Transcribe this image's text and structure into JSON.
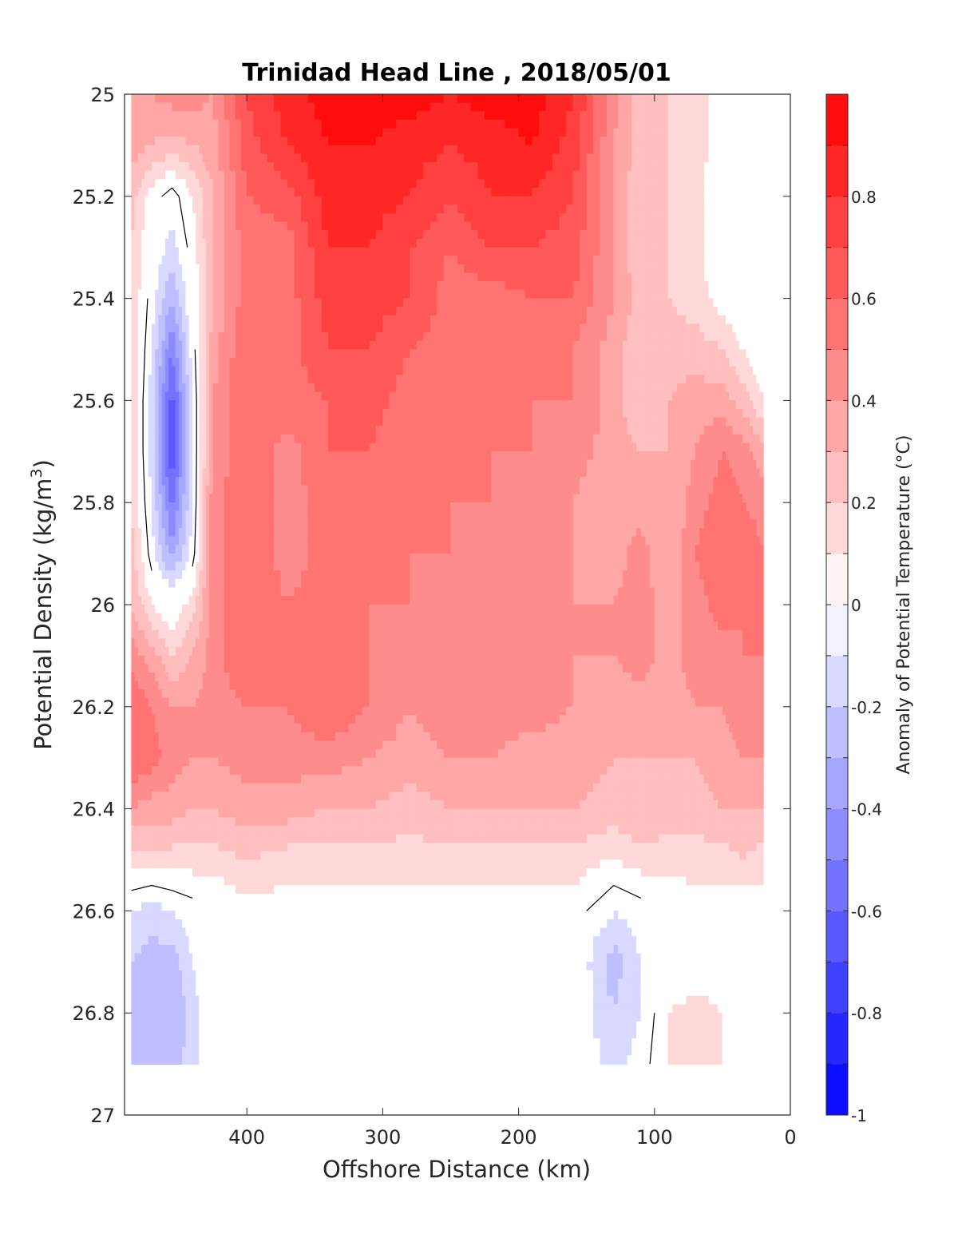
{
  "chart_data": {
    "type": "heatmap",
    "subtype": "filled-contour section",
    "title": "Trinidad Head Line , 2018/05/01",
    "xlabel": "Offshore Distance (km)",
    "ylabel": "Potential Density (kg/m",
    "ylabel_sup": "3",
    "ylabel_close": ")",
    "xlim": [
      490,
      0
    ],
    "x_reversed": true,
    "ylim": [
      25,
      27
    ],
    "y_reversed": true,
    "x_ticks": [
      "400",
      "300",
      "200",
      "100",
      "0"
    ],
    "y_ticks": [
      "25",
      "25.2",
      "25.4",
      "25.6",
      "25.8",
      "26",
      "26.2",
      "26.4",
      "26.6",
      "26.8",
      "27"
    ],
    "grid": false,
    "colorbar": {
      "label": "Anomaly of Potential Temperature (°C)",
      "range": [
        -1,
        1
      ],
      "tick_labels": [
        "0.8",
        "0.6",
        "0.4",
        "0.2",
        "0",
        "-0.2",
        "-0.4",
        "-0.6",
        "-0.8",
        "-1"
      ],
      "level_step": 0.1,
      "colormap": "blue-white-red",
      "low_color": "#0000ff",
      "mid_color": "#ffffff",
      "high_color": "#ff0000"
    },
    "contour_line": {
      "level": 0,
      "color": "#000000"
    },
    "data_extent_x": [
      490,
      20
    ],
    "data_extent_y": [
      25,
      26.9
    ],
    "x": [
      485,
      470,
      455,
      440,
      425,
      400,
      370,
      340,
      310,
      280,
      250,
      220,
      190,
      160,
      130,
      110,
      90,
      70,
      50,
      35,
      20
    ],
    "y": [
      25.0,
      25.1,
      25.2,
      25.3,
      25.4,
      25.5,
      25.6,
      25.7,
      25.8,
      25.9,
      26.0,
      26.1,
      26.2,
      26.3,
      26.4,
      26.5,
      26.6,
      26.7,
      26.8,
      26.9
    ],
    "z": [
      [
        0.35,
        0.4,
        0.45,
        0.45,
        0.4,
        0.7,
        0.85,
        0.95,
        0.95,
        0.95,
        0.9,
        0.95,
        0.95,
        0.8,
        0.45,
        0.25,
        0.2,
        0.15,
        0.05,
        0.05,
        0.05
      ],
      [
        0.35,
        0.3,
        0.25,
        0.3,
        0.35,
        0.65,
        0.8,
        0.9,
        0.9,
        0.85,
        0.8,
        0.85,
        0.9,
        0.75,
        0.4,
        0.25,
        0.2,
        0.15,
        0.05,
        0.05,
        0.05
      ],
      [
        0.25,
        0.05,
        -0.05,
        0.1,
        0.3,
        0.6,
        0.65,
        0.85,
        0.85,
        0.8,
        0.7,
        0.8,
        0.8,
        0.7,
        0.4,
        0.2,
        0.2,
        0.15,
        0.0,
        0.0,
        0.0
      ],
      [
        0.2,
        0.0,
        -0.15,
        0.05,
        0.3,
        0.55,
        0.55,
        0.8,
        0.8,
        0.7,
        0.6,
        0.7,
        0.7,
        0.65,
        0.4,
        0.2,
        0.2,
        0.15,
        0.0,
        -0.05,
        0.0
      ],
      [
        0.2,
        -0.05,
        -0.3,
        0.0,
        0.3,
        0.55,
        0.55,
        0.75,
        0.75,
        0.7,
        0.55,
        0.55,
        0.6,
        0.6,
        0.4,
        0.25,
        0.2,
        0.15,
        0.05,
        0.0,
        -0.05
      ],
      [
        0.2,
        -0.1,
        -0.5,
        -0.05,
        0.35,
        0.6,
        0.55,
        0.7,
        0.7,
        0.6,
        0.55,
        0.5,
        0.55,
        0.5,
        0.35,
        0.2,
        0.25,
        0.25,
        0.2,
        0.1,
        0.0
      ],
      [
        0.2,
        -0.15,
        -0.65,
        -0.1,
        0.4,
        0.6,
        0.55,
        0.6,
        0.65,
        0.55,
        0.5,
        0.5,
        0.5,
        0.5,
        0.35,
        0.2,
        0.3,
        0.35,
        0.35,
        0.25,
        0.1
      ],
      [
        0.2,
        -0.15,
        -0.7,
        -0.1,
        0.4,
        0.6,
        0.45,
        0.6,
        0.6,
        0.5,
        0.5,
        0.5,
        0.5,
        0.45,
        0.35,
        0.3,
        0.3,
        0.4,
        0.5,
        0.45,
        0.35
      ],
      [
        0.2,
        -0.1,
        -0.55,
        -0.1,
        0.45,
        0.6,
        0.45,
        0.55,
        0.55,
        0.5,
        0.5,
        0.5,
        0.45,
        0.4,
        0.3,
        0.35,
        0.3,
        0.45,
        0.55,
        0.5,
        0.45
      ],
      [
        0.25,
        -0.05,
        -0.35,
        -0.05,
        0.45,
        0.6,
        0.45,
        0.55,
        0.5,
        0.5,
        0.5,
        0.45,
        0.45,
        0.4,
        0.35,
        0.45,
        0.3,
        0.5,
        0.6,
        0.6,
        0.5
      ],
      [
        0.3,
        0.1,
        0.0,
        0.15,
        0.45,
        0.6,
        0.5,
        0.55,
        0.5,
        0.5,
        0.45,
        0.45,
        0.45,
        0.4,
        0.4,
        0.45,
        0.35,
        0.45,
        0.55,
        0.5,
        0.5
      ],
      [
        0.45,
        0.35,
        0.2,
        0.3,
        0.45,
        0.6,
        0.5,
        0.6,
        0.5,
        0.45,
        0.5,
        0.5,
        0.45,
        0.4,
        0.4,
        0.45,
        0.35,
        0.45,
        0.45,
        0.5,
        0.5
      ],
      [
        0.6,
        0.5,
        0.4,
        0.4,
        0.45,
        0.5,
        0.5,
        0.6,
        0.5,
        0.4,
        0.45,
        0.45,
        0.45,
        0.4,
        0.35,
        0.35,
        0.35,
        0.4,
        0.4,
        0.45,
        0.45
      ],
      [
        0.6,
        0.55,
        0.45,
        0.4,
        0.4,
        0.45,
        0.45,
        0.45,
        0.4,
        0.35,
        0.4,
        0.4,
        0.35,
        0.35,
        0.3,
        0.3,
        0.3,
        0.3,
        0.35,
        0.4,
        0.4
      ],
      [
        0.4,
        0.35,
        0.35,
        0.3,
        0.3,
        0.35,
        0.35,
        0.3,
        0.3,
        0.25,
        0.3,
        0.3,
        0.3,
        0.3,
        0.25,
        0.3,
        0.25,
        0.25,
        0.3,
        0.3,
        0.3
      ],
      [
        0.15,
        0.15,
        0.15,
        0.15,
        0.15,
        0.2,
        0.15,
        0.15,
        0.15,
        0.15,
        0.15,
        0.15,
        0.15,
        0.15,
        0.1,
        0.15,
        0.15,
        0.15,
        0.15,
        0.2,
        0.15
      ],
      [
        -0.1,
        -0.15,
        -0.1,
        -0.05,
        0.0,
        0.05,
        0.05,
        0.05,
        0.05,
        0.05,
        0.05,
        0.05,
        0.05,
        0.05,
        -0.1,
        -0.05,
        0.0,
        0.05,
        0.05,
        0.0,
        0.05
      ],
      [
        -0.2,
        -0.25,
        -0.25,
        -0.1,
        0.0,
        0.05,
        0.0,
        0.0,
        0.0,
        -0.05,
        0.0,
        0.0,
        0.0,
        0.0,
        -0.25,
        -0.1,
        0.0,
        0.0,
        0.05,
        0.0,
        -0.05
      ],
      [
        -0.2,
        -0.3,
        -0.3,
        -0.15,
        0.0,
        0.0,
        0.0,
        0.0,
        0.0,
        0.0,
        0.0,
        0.0,
        -0.05,
        0.0,
        -0.2,
        -0.1,
        0.1,
        0.15,
        0.1,
        0.0,
        -0.05
      ],
      [
        -0.2,
        -0.25,
        -0.25,
        -0.15,
        0.0,
        0.0,
        0.0,
        0.0,
        0.0,
        0.0,
        0.0,
        0.0,
        0.0,
        0.0,
        -0.15,
        -0.05,
        0.1,
        0.1,
        0.1,
        0.0,
        0.0
      ]
    ]
  }
}
